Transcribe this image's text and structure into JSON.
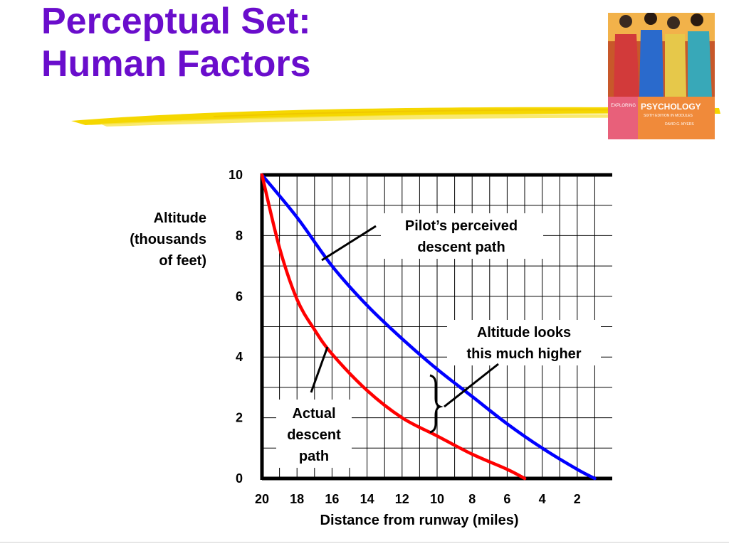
{
  "slide": {
    "title_line1": "Perceptual Set:",
    "title_line2": "Human Factors"
  },
  "book_cover": {
    "series_label": "EXPLORING",
    "title": "PSYCHOLOGY",
    "subtitle": "SIXTH EDITION IN MODULES",
    "author": "DAVID G. MYERS"
  },
  "colors": {
    "title": "#6a0dcc",
    "perceived": "#0000ff",
    "actual": "#ff0000",
    "highlight": "#f5d700"
  },
  "chart_data": {
    "type": "line",
    "xlabel": "Distance from runway (miles)",
    "ylabel_lines": [
      "Altitude",
      "(thousands",
      "of feet)"
    ],
    "x_ticks": [
      20,
      18,
      16,
      14,
      12,
      10,
      8,
      6,
      4,
      2
    ],
    "y_ticks": [
      0,
      2,
      4,
      6,
      8,
      10
    ],
    "xlim": [
      20,
      0
    ],
    "ylim": [
      0,
      10
    ],
    "x_reversed": true,
    "grid": true,
    "series": [
      {
        "key": "perceived",
        "color": "#0000ff",
        "x": [
          20,
          18,
          16,
          14,
          12,
          10,
          8,
          6,
          4,
          2,
          1
        ],
        "y": [
          10,
          8.6,
          7.0,
          5.7,
          4.6,
          3.6,
          2.7,
          1.8,
          1.0,
          0.3,
          0
        ]
      },
      {
        "key": "actual",
        "color": "#ff0000",
        "x": [
          20,
          19,
          18,
          17,
          16,
          14,
          12,
          10,
          8,
          6,
          5
        ],
        "y": [
          10,
          7.6,
          5.9,
          4.9,
          4.1,
          2.9,
          2.0,
          1.4,
          0.8,
          0.3,
          0
        ]
      }
    ],
    "annotations": [
      {
        "key": "perceived",
        "lines": [
          "Pilot’s perceived",
          "descent path"
        ]
      },
      {
        "key": "gap",
        "lines": [
          "Altitude looks",
          "this much higher"
        ]
      },
      {
        "key": "actual",
        "lines": [
          "Actual",
          "descent",
          "path"
        ]
      }
    ]
  }
}
